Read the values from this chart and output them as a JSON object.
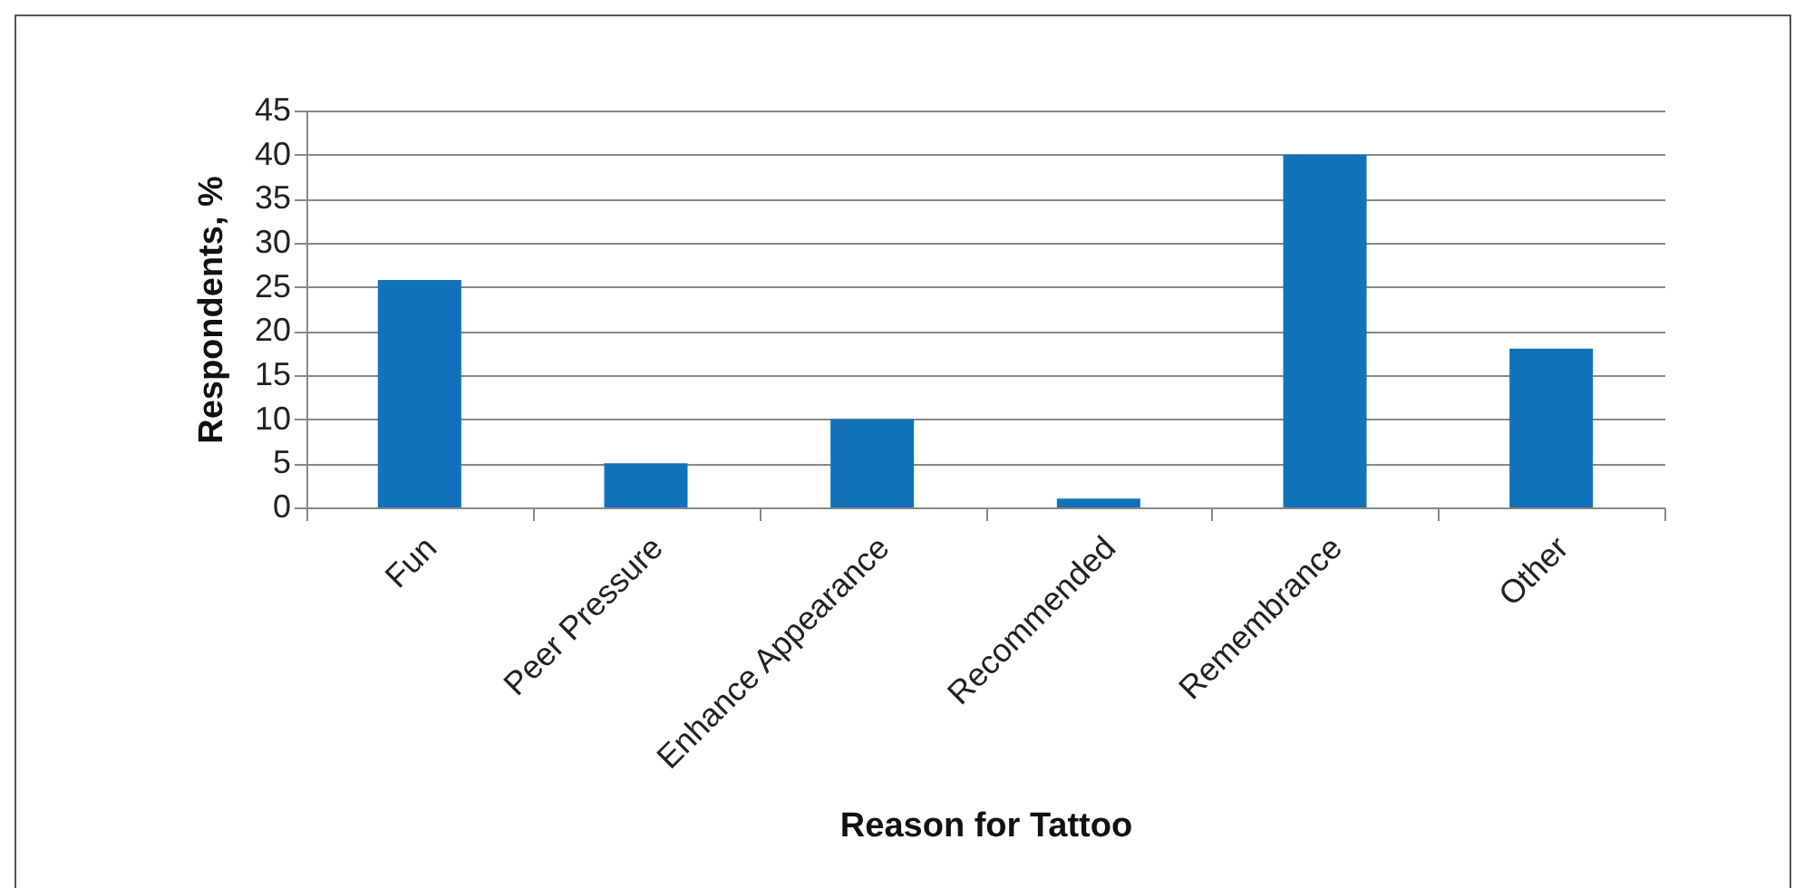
{
  "chart_data": {
    "type": "bar",
    "categories": [
      "Fun",
      "Peer Pressure",
      "Enhance Appearance",
      "Recommended",
      "Remembrance",
      "Other"
    ],
    "values": [
      25.8,
      5,
      10,
      1,
      40,
      18
    ],
    "color": "#1172bb",
    "xlabel": "Reason for Tattoo",
    "ylabel": "Respondents, %",
    "ylim": [
      0,
      45
    ],
    "yticks": [
      0,
      5,
      10,
      15,
      20,
      25,
      30,
      35,
      40,
      45
    ],
    "grid": "y"
  }
}
